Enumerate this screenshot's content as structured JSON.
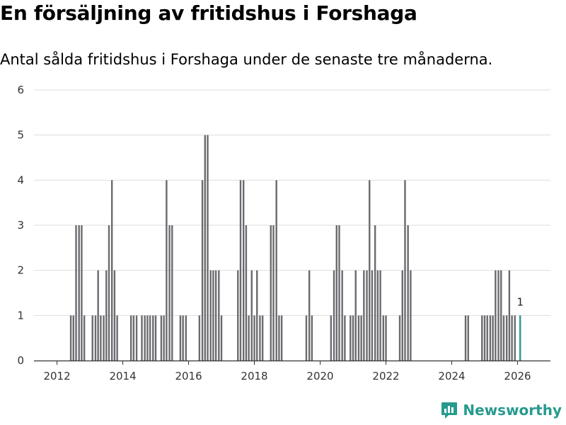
{
  "title": "En försäljning av fritidshus i Forshaga",
  "subtitle": "Antal sålda fritidshus i Forshaga under de senaste tre månaderna.",
  "brand": {
    "name": "Newsworthy",
    "logo_icon": "bar-chart-chat-icon"
  },
  "colors": {
    "bar": "#6b6a6f",
    "highlight": "#279a8e",
    "grid": "#dddddd",
    "axis": "#333333"
  },
  "chart_data": {
    "type": "bar",
    "title": "En försäljning av fritidshus i Forshaga",
    "subtitle": "Antal sålda fritidshus i Forshaga under de senaste tre månaderna.",
    "xlabel": "",
    "ylabel": "",
    "x_unit": "year (monthly bars)",
    "x_range": [
      2011.3,
      2027.0
    ],
    "ylim": [
      0,
      6
    ],
    "yticks": [
      0,
      1,
      2,
      3,
      4,
      5,
      6
    ],
    "xticks": [
      "2012",
      "2014",
      "2016",
      "2018",
      "2020",
      "2022",
      "2024",
      "2026"
    ],
    "xtick_values": [
      2012,
      2014,
      2016,
      2018,
      2020,
      2022,
      2024,
      2026
    ],
    "grid": true,
    "series": [
      {
        "name": "Antal sålda fritidshus",
        "x": [
          2012.42,
          2012.5,
          2012.58,
          2012.67,
          2012.75,
          2012.83,
          2013.08,
          2013.17,
          2013.25,
          2013.33,
          2013.42,
          2013.5,
          2013.58,
          2013.67,
          2013.75,
          2013.83,
          2014.25,
          2014.33,
          2014.42,
          2014.58,
          2014.67,
          2014.75,
          2014.83,
          2014.92,
          2015.0,
          2015.17,
          2015.25,
          2015.33,
          2015.42,
          2015.5,
          2015.75,
          2015.83,
          2015.92,
          2016.33,
          2016.42,
          2016.5,
          2016.58,
          2016.67,
          2016.75,
          2016.83,
          2016.92,
          2017.0,
          2017.5,
          2017.58,
          2017.67,
          2017.75,
          2017.83,
          2017.92,
          2018.0,
          2018.08,
          2018.17,
          2018.25,
          2018.5,
          2018.58,
          2018.67,
          2018.75,
          2018.83,
          2019.58,
          2019.67,
          2019.75,
          2020.33,
          2020.42,
          2020.5,
          2020.58,
          2020.67,
          2020.75,
          2020.92,
          2021.0,
          2021.08,
          2021.17,
          2021.25,
          2021.33,
          2021.42,
          2021.5,
          2021.58,
          2021.67,
          2021.75,
          2021.83,
          2021.92,
          2022.0,
          2022.42,
          2022.5,
          2022.58,
          2022.67,
          2022.75,
          2024.42,
          2024.5,
          2024.92,
          2025.0,
          2025.08,
          2025.17,
          2025.25,
          2025.33,
          2025.42,
          2025.5,
          2025.58,
          2025.67,
          2025.75,
          2025.83,
          2025.92,
          2026.08
        ],
        "values": [
          1,
          1,
          3,
          3,
          3,
          1,
          1,
          1,
          2,
          1,
          1,
          2,
          3,
          4,
          2,
          1,
          1,
          1,
          1,
          1,
          1,
          1,
          1,
          1,
          1,
          1,
          1,
          4,
          3,
          3,
          1,
          1,
          1,
          1,
          4,
          5,
          5,
          2,
          2,
          2,
          2,
          1,
          2,
          4,
          4,
          3,
          1,
          2,
          1,
          2,
          1,
          1,
          3,
          3,
          4,
          1,
          1,
          1,
          2,
          1,
          1,
          2,
          3,
          3,
          2,
          1,
          1,
          1,
          2,
          1,
          1,
          2,
          2,
          4,
          2,
          3,
          2,
          2,
          1,
          1,
          1,
          2,
          4,
          3,
          2,
          1,
          1,
          1,
          1,
          1,
          1,
          1,
          2,
          2,
          2,
          1,
          1,
          2,
          1,
          1,
          1
        ]
      }
    ],
    "highlight": {
      "x": 2026.08,
      "value": 1,
      "label": "1"
    }
  }
}
